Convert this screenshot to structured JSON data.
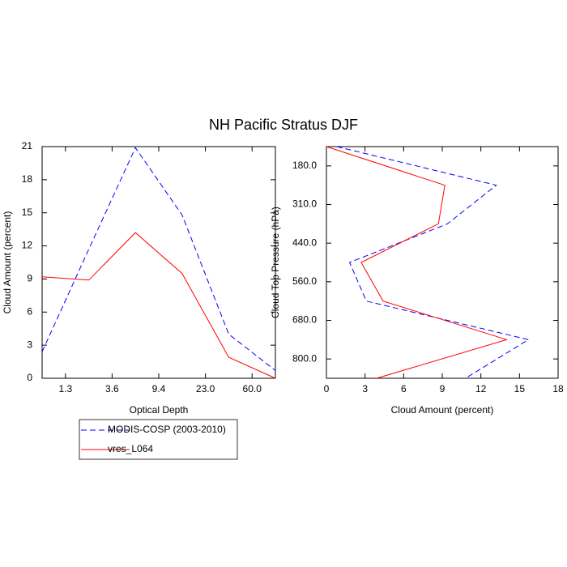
{
  "chart_data": [
    {
      "type": "line",
      "title": "NH Pacific Stratus DJF",
      "xlabel": "Optical Depth",
      "ylabel": "Cloud Amount (percent)",
      "x": [
        0,
        1,
        2,
        3,
        4,
        5
      ],
      "series": [
        {
          "name": "MODIS-COSP (2003-2010)",
          "color": "#0000ff",
          "dash": true,
          "values": [
            2.4,
            11.7,
            20.9,
            14.8,
            4.0,
            0.7
          ]
        },
        {
          "name": "vres_L064",
          "color": "#ff0000",
          "dash": false,
          "values": [
            9.2,
            8.9,
            13.2,
            9.5,
            1.9,
            0.0
          ]
        }
      ],
      "xlim": [
        0,
        5
      ],
      "xticks": [
        {
          "value": 0.5,
          "label": "1.3"
        },
        {
          "value": 1.5,
          "label": "3.6"
        },
        {
          "value": 2.5,
          "label": "9.4"
        },
        {
          "value": 3.5,
          "label": "23.0"
        },
        {
          "value": 4.5,
          "label": "60.0"
        }
      ],
      "ylim": [
        0,
        21
      ],
      "yticks": [
        0,
        3,
        6,
        9,
        12,
        15,
        18,
        21
      ],
      "legend": "below"
    },
    {
      "type": "line",
      "orientation": "horizontal",
      "xlabel": "Cloud Amount (percent)",
      "ylabel": "Cloud Top Pressure (hPa)",
      "y": [
        0,
        1,
        2,
        3,
        4,
        5,
        6
      ],
      "series": [
        {
          "color": "#0000ff",
          "dash": true,
          "values": [
            0.8,
            13.2,
            9.4,
            1.8,
            3.1,
            15.7,
            10.8
          ]
        },
        {
          "color": "#ff0000",
          "dash": false,
          "values": [
            0.0,
            9.2,
            8.7,
            2.7,
            4.4,
            14.0,
            3.9
          ]
        }
      ],
      "xlim": [
        0,
        18
      ],
      "xticks": [
        0,
        3,
        6,
        9,
        12,
        15,
        18
      ],
      "ylim": [
        0,
        6
      ],
      "y_inverted": true,
      "yticks": [
        {
          "value": 0.5,
          "label": "180.0"
        },
        {
          "value": 1.5,
          "label": "310.0"
        },
        {
          "value": 2.5,
          "label": "440.0"
        },
        {
          "value": 3.5,
          "label": "560.0"
        },
        {
          "value": 4.5,
          "label": "680.0"
        },
        {
          "value": 5.5,
          "label": "800.0"
        }
      ]
    }
  ]
}
